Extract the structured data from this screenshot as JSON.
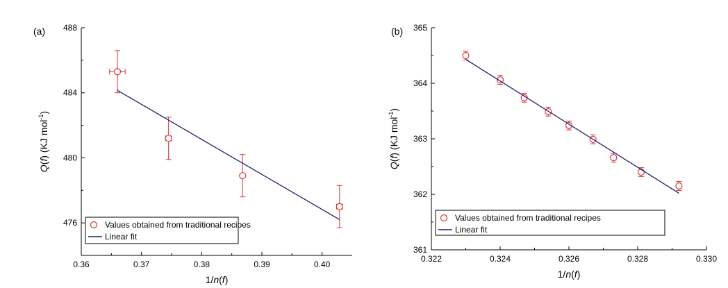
{
  "chart_data": [
    {
      "type": "scatter",
      "panel_label": "(a)",
      "xlabel_pre": "1/",
      "xlabel_italic_n": "n",
      "xlabel_open": "(",
      "xlabel_italic_f": "f",
      "xlabel_close": ")",
      "ylabel_italic_Q": "Q",
      "ylabel_open": "(",
      "ylabel_italic_f": "f",
      "ylabel_close": ") (KJ mol",
      "ylabel_sup": "-1",
      "ylabel_end": ")",
      "xlim": [
        0.36,
        0.405
      ],
      "ylim": [
        474,
        488
      ],
      "xticks": [
        0.36,
        0.37,
        0.38,
        0.39,
        0.4
      ],
      "xtick_labels": [
        "0.36",
        "0.37",
        "0.38",
        "0.39",
        "0.40"
      ],
      "yticks": [
        476,
        480,
        484,
        488
      ],
      "ytick_labels": [
        "476",
        "480",
        "484",
        "488"
      ],
      "series": [
        {
          "name": "Values obtained from traditional recipes",
          "kind": "points",
          "color": "#e03030",
          "x": [
            0.366,
            0.3745,
            0.3868,
            0.4029
          ],
          "y": [
            485.3,
            481.2,
            478.9,
            477.0
          ],
          "yerr": [
            1.3,
            1.3,
            1.3,
            1.3
          ],
          "xerr": [
            0.0013,
            0.0005,
            0.0003,
            0.0005
          ]
        },
        {
          "name": "Linear fit",
          "kind": "line",
          "color": "#1c1c7a",
          "x": [
            0.366,
            0.4029
          ],
          "y": [
            484.15,
            476.2
          ]
        }
      ],
      "legend_position": "bottom-left"
    },
    {
      "type": "scatter",
      "panel_label": "(b)",
      "xlabel_pre": "1/",
      "xlabel_italic_n": "n",
      "xlabel_open": "(",
      "xlabel_italic_f": "f",
      "xlabel_close": ")",
      "ylabel_italic_Q": "Q",
      "ylabel_open": "(",
      "ylabel_italic_f": "f",
      "ylabel_close": ") (KJ mol",
      "ylabel_sup": "-1",
      "ylabel_end": ")",
      "xlim": [
        0.322,
        0.33
      ],
      "ylim": [
        361,
        365
      ],
      "xticks": [
        0.322,
        0.324,
        0.326,
        0.328,
        0.33
      ],
      "xtick_labels": [
        "0.322",
        "0.324",
        "0.326",
        "0.328",
        "0.330"
      ],
      "yticks": [
        361,
        362,
        363,
        364,
        365
      ],
      "ytick_labels": [
        "361",
        "362",
        "363",
        "364",
        "365"
      ],
      "series": [
        {
          "name": "Values obtained from traditional recipes",
          "kind": "points",
          "color": "#e03030",
          "x": [
            0.323,
            0.324,
            0.3247,
            0.3254,
            0.326,
            0.3267,
            0.3273,
            0.3281,
            0.3292
          ],
          "y": [
            364.5,
            364.06,
            363.74,
            363.49,
            363.24,
            362.99,
            362.66,
            362.4,
            362.15
          ],
          "yerr": [
            0.08,
            0.08,
            0.08,
            0.08,
            0.08,
            0.08,
            0.08,
            0.08,
            0.08
          ],
          "xerr": [
            5e-05,
            5e-05,
            5e-05,
            5e-05,
            5e-05,
            5e-05,
            5e-05,
            5e-05,
            5e-05
          ]
        },
        {
          "name": "Linear fit",
          "kind": "line",
          "color": "#1c1c7a",
          "x": [
            0.323,
            0.3292
          ],
          "y": [
            364.43,
            362.02
          ]
        }
      ],
      "legend_position": "bottom-left"
    }
  ]
}
